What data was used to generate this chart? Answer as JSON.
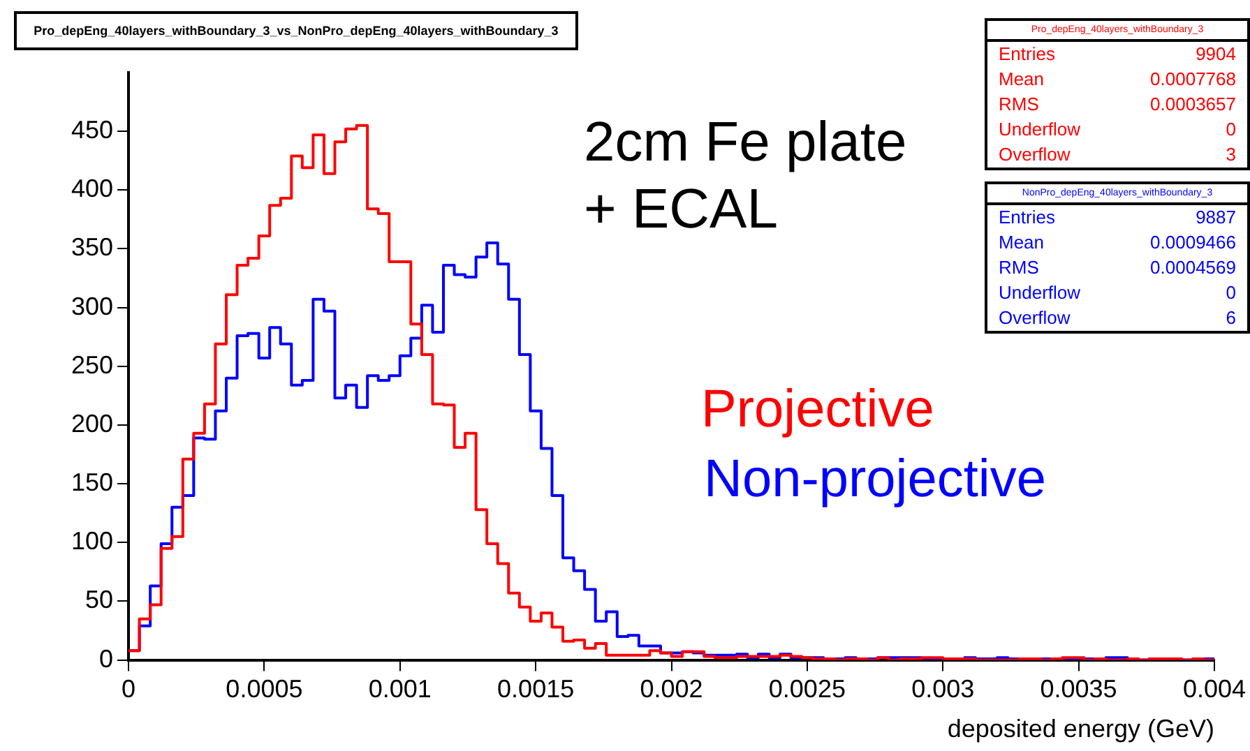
{
  "chart_data": {
    "type": "histogram",
    "title": "Pro_depEng_40layers_withBoundary_3_vs_NonPro_depEng_40layers_withBoundary_3",
    "xlabel": "deposited energy (GeV)",
    "bins": [
      0,
      4e-05,
      8e-05,
      0.00012,
      0.00016,
      0.0002,
      0.00024,
      0.00028,
      0.00032,
      0.00036,
      0.0004,
      0.00044,
      0.00048,
      0.00052,
      0.00056,
      0.0006,
      0.00064,
      0.00068,
      0.00072,
      0.00076,
      0.0008,
      0.00084,
      0.00088,
      0.00092,
      0.00096,
      0.001,
      0.00104,
      0.00108,
      0.00112,
      0.00116,
      0.0012,
      0.00124,
      0.00128,
      0.00132,
      0.00136,
      0.0014,
      0.00144,
      0.00148,
      0.00152,
      0.00156,
      0.0016,
      0.00164,
      0.00168,
      0.00172,
      0.00176,
      0.0018,
      0.00184,
      0.00188,
      0.00192,
      0.00196,
      0.002,
      0.00204,
      0.00208,
      0.00212,
      0.00216,
      0.0022,
      0.00224,
      0.00228,
      0.00232,
      0.00236,
      0.0024,
      0.00244,
      0.00248,
      0.00252,
      0.00256,
      0.0026,
      0.00264,
      0.00268,
      0.00272,
      0.00276,
      0.0028,
      0.00284,
      0.00288,
      0.00292,
      0.00296,
      0.003,
      0.00304,
      0.00308,
      0.00312,
      0.00316,
      0.0032,
      0.00324,
      0.00328,
      0.00332,
      0.00336,
      0.0034,
      0.00344,
      0.00348,
      0.00352,
      0.00356,
      0.0036,
      0.00364,
      0.00368,
      0.00372,
      0.00376,
      0.0038,
      0.00384,
      0.00388,
      0.00392,
      0.00396,
      0.004
    ],
    "series": [
      {
        "name": "Projective",
        "color": "#ff0000",
        "values": [
          8,
          35,
          47,
          95,
          105,
          171,
          193,
          218,
          269,
          311,
          336,
          342,
          361,
          387,
          393,
          429,
          419,
          447,
          414,
          441,
          452,
          455,
          384,
          380,
          339,
          339,
          286,
          260,
          218,
          217,
          181,
          193,
          128,
          99,
          82,
          57,
          45,
          33,
          40,
          28,
          16,
          17,
          10,
          14,
          4,
          4,
          4,
          4,
          8,
          6,
          3,
          7,
          7,
          3,
          2,
          2,
          3,
          3,
          3,
          3,
          4,
          3,
          2,
          1,
          1,
          0,
          1,
          1,
          0,
          2,
          0,
          1,
          1,
          2,
          2,
          1,
          1,
          1,
          0,
          0,
          0,
          0,
          1,
          1,
          0,
          1,
          2,
          2,
          0,
          1,
          0,
          0,
          1,
          0,
          1,
          1,
          1,
          0,
          1,
          0
        ]
      },
      {
        "name": "Non-projective",
        "color": "#0000ff",
        "values": [
          8,
          29,
          63,
          99,
          130,
          140,
          189,
          188,
          212,
          240,
          276,
          278,
          257,
          283,
          269,
          234,
          238,
          307,
          297,
          223,
          234,
          215,
          242,
          238,
          242,
          259,
          274,
          302,
          279,
          336,
          328,
          326,
          343,
          355,
          337,
          307,
          260,
          212,
          180,
          140,
          87,
          76,
          60,
          33,
          41,
          20,
          21,
          12,
          12,
          6,
          6,
          7,
          6,
          4,
          4,
          4,
          5,
          2,
          5,
          2,
          5,
          2,
          2,
          2,
          1,
          1,
          2,
          1,
          1,
          2,
          2,
          2,
          2,
          1,
          0,
          1,
          1,
          2,
          1,
          1,
          2,
          1,
          1,
          0,
          1,
          1,
          1,
          0,
          1,
          1,
          2,
          2,
          1,
          0,
          1,
          1,
          0,
          0,
          0,
          1
        ]
      }
    ],
    "xlim": [
      0,
      0.004
    ],
    "xticks": [
      0,
      0.0005,
      0.001,
      0.0015,
      0.002,
      0.0025,
      0.003,
      0.0035,
      0.004
    ],
    "ylim": [
      0,
      500
    ],
    "yticks": [
      0,
      50,
      100,
      150,
      200,
      250,
      300,
      350,
      400,
      450
    ],
    "grid": false,
    "legend": false,
    "annotations": [
      "2cm Fe plate\n+ ECAL",
      "Pro_depEng_40layers_withBoundary_3",
      "Entries",
      "9904",
      "Mean",
      "0.0007768",
      "RMS",
      "0.0003657",
      "Underflow",
      "0",
      "Overflow",
      "3",
      "NonPro_depEng_40layers_withBoundary_3",
      "Entries",
      "9887",
      "Mean",
      "0.0009466",
      "RMS",
      "0.0004569",
      "Underflow",
      "0",
      "Overflow",
      "6"
    ]
  }
}
